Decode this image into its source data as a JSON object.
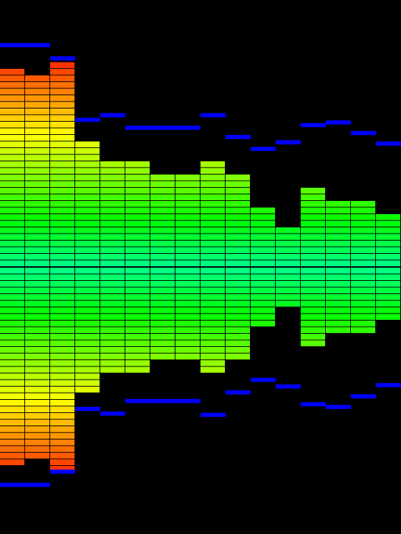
{
  "visualizer": {
    "levels": [
      30,
      29,
      31,
      19,
      16,
      16,
      14,
      14,
      16,
      14,
      9,
      6,
      12,
      10,
      10,
      8
    ],
    "peaks_top": [
      33.9,
      33.9,
      31.9,
      22.6,
      23.3,
      21.4,
      21.4,
      21.4,
      23.3,
      20,
      18.2,
      19.2,
      21.8,
      22.2,
      20.6,
      19
    ],
    "peaks_bottom": [
      33.3,
      33.3,
      31.3,
      21.8,
      22.5,
      20.6,
      20.6,
      20.6,
      22.7,
      19.3,
      17.4,
      18.4,
      21.1,
      21.5,
      19.9,
      18.2
    ],
    "peak_color": "#0000ff"
  }
}
